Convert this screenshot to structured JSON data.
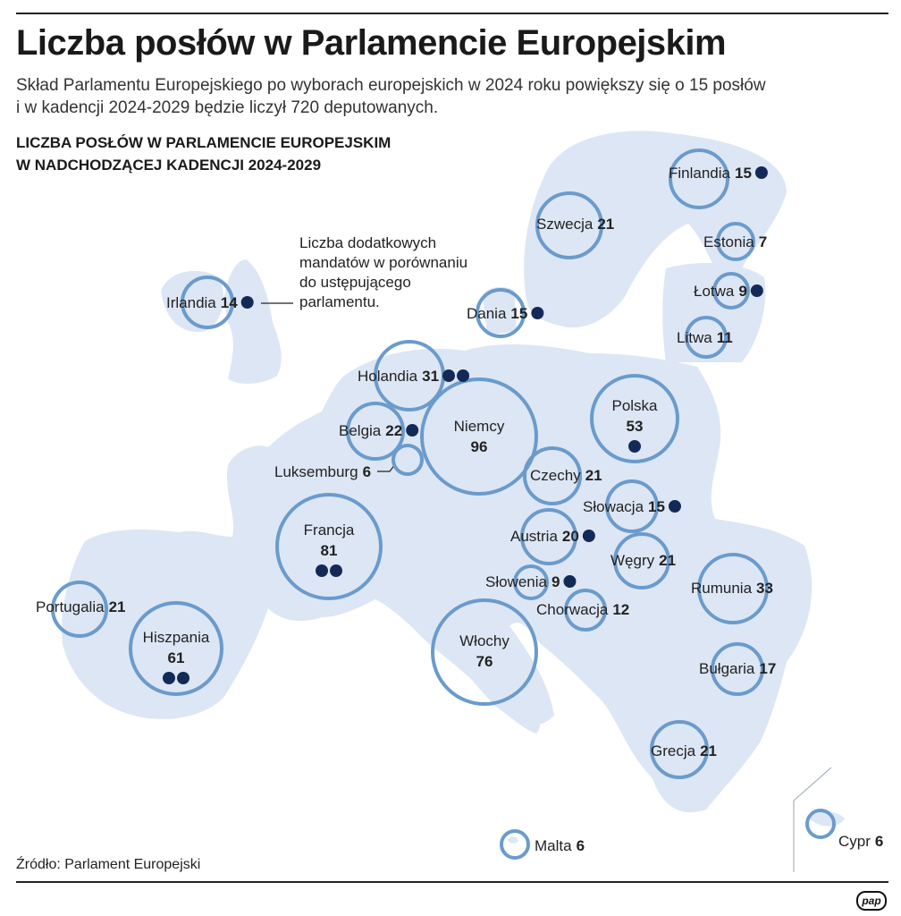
{
  "title": "Liczba posłów w Parlamencie Europejskim",
  "subtitle_line1": "Skład Parlamentu Europejskiego po wyborach europejskich w 2024 roku powiększy się o 15 posłów",
  "subtitle_line2": "i w kadencji 2024-2029 będzie liczył 720 deputowanych.",
  "map_heading_line1": "LICZBA POSŁÓW W PARLAMENCIE EUROPEJSKIM",
  "map_heading_line2": "W NADCHODZĄCEJ KADENCJI 2024-2029",
  "legend": {
    "line1": "Liczba dodatkowych",
    "line2": "mandatów w porównaniu",
    "line3": "do ustępującego",
    "line4": "parlamentu."
  },
  "countries": [
    {
      "name": "Finlandia",
      "seats": "15",
      "extra": 1
    },
    {
      "name": "Szwecja",
      "seats": "21",
      "extra": 0
    },
    {
      "name": "Estonia",
      "seats": "7",
      "extra": 0
    },
    {
      "name": "Irlandia",
      "seats": "14",
      "extra": 1
    },
    {
      "name": "Dania",
      "seats": "15",
      "extra": 1
    },
    {
      "name": "Łotwa",
      "seats": "9",
      "extra": 1
    },
    {
      "name": "Litwa",
      "seats": "11",
      "extra": 0
    },
    {
      "name": "Holandia",
      "seats": "31",
      "extra": 2
    },
    {
      "name": "Polska",
      "seats": "53",
      "extra": 1
    },
    {
      "name": "Niemcy",
      "seats": "96",
      "extra": 0
    },
    {
      "name": "Belgia",
      "seats": "22",
      "extra": 1
    },
    {
      "name": "Luksemburg",
      "seats": "6",
      "extra": 0
    },
    {
      "name": "Czechy",
      "seats": "21",
      "extra": 0
    },
    {
      "name": "Słowacja",
      "seats": "15",
      "extra": 1
    },
    {
      "name": "Francja",
      "seats": "81",
      "extra": 2
    },
    {
      "name": "Austria",
      "seats": "20",
      "extra": 1
    },
    {
      "name": "Węgry",
      "seats": "21",
      "extra": 0
    },
    {
      "name": "Słowenia",
      "seats": "9",
      "extra": 1
    },
    {
      "name": "Rumunia",
      "seats": "33",
      "extra": 0
    },
    {
      "name": "Portugalia",
      "seats": "21",
      "extra": 0
    },
    {
      "name": "Chorwacja",
      "seats": "12",
      "extra": 0
    },
    {
      "name": "Hiszpania",
      "seats": "61",
      "extra": 2
    },
    {
      "name": "Włochy",
      "seats": "76",
      "extra": 0
    },
    {
      "name": "Bułgaria",
      "seats": "17",
      "extra": 0
    },
    {
      "name": "Grecja",
      "seats": "21",
      "extra": 0
    },
    {
      "name": "Malta",
      "seats": "6",
      "extra": 0
    },
    {
      "name": "Cypr",
      "seats": "6",
      "extra": 0
    }
  ],
  "source": "Źródło: Parlament Europejski",
  "logo_text": "pap",
  "colors": {
    "land": "#dde6f4",
    "circle": "#6a9bcc",
    "dot": "#142a56",
    "text": "#1a1a1a"
  }
}
